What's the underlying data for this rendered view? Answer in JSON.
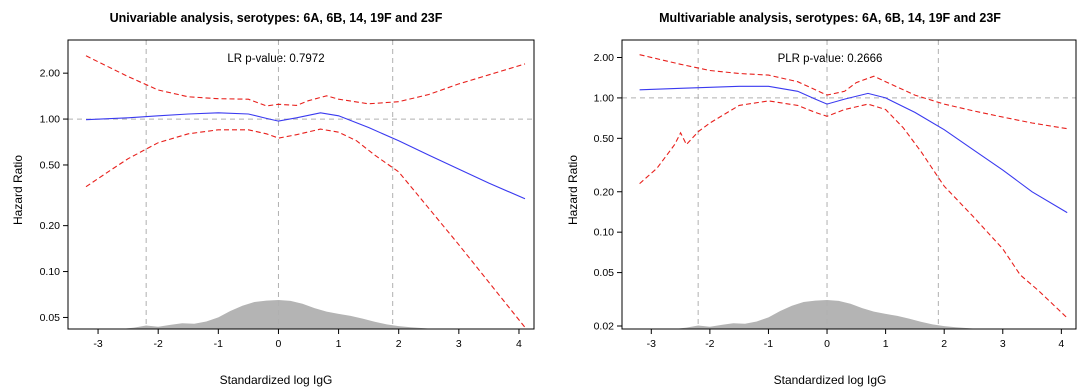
{
  "chart_data": [
    {
      "type": "line",
      "title": "Univariable analysis, serotypes: 6A, 6B, 14, 19F and 23F",
      "xlabel": "Standardized log IgG",
      "ylabel": "Hazard Ratio",
      "annotation": "LR p-value: 0.7972",
      "y_scale": "log",
      "xlim": [
        -3.5,
        4.25
      ],
      "ylim": [
        0.042,
        3.3
      ],
      "x_ticks": [
        -3,
        -2,
        -1,
        0,
        1,
        2,
        3,
        4
      ],
      "y_ticks": [
        0.05,
        0.1,
        0.2,
        0.5,
        1.0,
        2.0
      ],
      "y_tick_labels": [
        "0.05",
        "0.10",
        "0.20",
        "0.50",
        "1.00",
        "2.00"
      ],
      "reference_lines": {
        "vertical": [
          -2.2,
          0,
          1.9
        ],
        "horizontal": [
          1.0
        ]
      },
      "series": [
        {
          "role": "estimate",
          "color": "#3a3af0",
          "style": "solid",
          "x": [
            -3.2,
            -2.5,
            -2.0,
            -1.5,
            -1.0,
            -0.5,
            -0.2,
            0.0,
            0.3,
            0.7,
            1.0,
            1.5,
            2.0,
            2.5,
            3.0,
            3.5,
            4.1
          ],
          "y": [
            0.99,
            1.02,
            1.05,
            1.08,
            1.1,
            1.08,
            1.01,
            0.97,
            1.02,
            1.1,
            1.05,
            0.88,
            0.72,
            0.58,
            0.47,
            0.38,
            0.3
          ]
        },
        {
          "role": "ci-upper",
          "color": "#e8201c",
          "style": "dashed",
          "x": [
            -3.2,
            -2.5,
            -2.0,
            -1.5,
            -1.0,
            -0.5,
            -0.2,
            0.0,
            0.3,
            0.5,
            0.8,
            1.0,
            1.5,
            2.0,
            2.5,
            3.0,
            3.5,
            4.1
          ],
          "y": [
            2.6,
            1.9,
            1.55,
            1.4,
            1.36,
            1.35,
            1.22,
            1.25,
            1.23,
            1.32,
            1.42,
            1.35,
            1.26,
            1.3,
            1.45,
            1.7,
            1.95,
            2.3
          ]
        },
        {
          "role": "ci-lower",
          "color": "#e8201c",
          "style": "dashed",
          "x": [
            -3.2,
            -2.8,
            -2.5,
            -2.0,
            -1.5,
            -1.0,
            -0.5,
            -0.2,
            0.0,
            0.3,
            0.7,
            1.0,
            1.3,
            1.6,
            2.0,
            2.5,
            3.0,
            3.5,
            4.1
          ],
          "y": [
            0.36,
            0.46,
            0.55,
            0.7,
            0.8,
            0.85,
            0.85,
            0.8,
            0.75,
            0.79,
            0.86,
            0.82,
            0.72,
            0.58,
            0.45,
            0.26,
            0.15,
            0.085,
            0.043
          ]
        }
      ],
      "density": {
        "role": "distribution of standardized log IgG",
        "color": "#b4b4b4",
        "x": [
          -2.6,
          -2.4,
          -2.2,
          -2.0,
          -1.8,
          -1.6,
          -1.4,
          -1.2,
          -1.0,
          -0.8,
          -0.6,
          -0.4,
          -0.2,
          0.0,
          0.2,
          0.4,
          0.6,
          0.8,
          1.0,
          1.2,
          1.4,
          1.6,
          1.8,
          2.0,
          2.2,
          2.4,
          2.6
        ],
        "y": [
          0.0,
          0.05,
          0.12,
          0.08,
          0.14,
          0.2,
          0.18,
          0.26,
          0.4,
          0.62,
          0.8,
          0.93,
          0.98,
          1.0,
          0.97,
          0.87,
          0.72,
          0.6,
          0.52,
          0.45,
          0.36,
          0.25,
          0.16,
          0.1,
          0.06,
          0.03,
          0.0
        ]
      }
    },
    {
      "type": "line",
      "title": "Multivariable analysis, serotypes: 6A, 6B, 14, 19F and 23F",
      "xlabel": "Standardized log IgG",
      "ylabel": "Hazard Ratio",
      "annotation": "PLR p-value: 0.2666",
      "y_scale": "log",
      "xlim": [
        -3.5,
        4.25
      ],
      "ylim": [
        0.019,
        2.7
      ],
      "x_ticks": [
        -3,
        -2,
        -1,
        0,
        1,
        2,
        3,
        4
      ],
      "y_ticks": [
        0.02,
        0.05,
        0.1,
        0.2,
        0.5,
        1.0,
        2.0
      ],
      "y_tick_labels": [
        "0.02",
        "0.05",
        "0.10",
        "0.20",
        "0.50",
        "1.00",
        "2.00"
      ],
      "reference_lines": {
        "vertical": [
          -2.2,
          0,
          1.9
        ],
        "horizontal": [
          1.0
        ]
      },
      "series": [
        {
          "role": "estimate",
          "color": "#3a3af0",
          "style": "solid",
          "x": [
            -3.2,
            -2.5,
            -2.0,
            -1.5,
            -1.0,
            -0.5,
            -0.2,
            0.0,
            0.3,
            0.7,
            1.0,
            1.5,
            2.0,
            2.5,
            3.0,
            3.5,
            4.1
          ],
          "y": [
            1.15,
            1.18,
            1.2,
            1.22,
            1.22,
            1.12,
            0.98,
            0.9,
            0.98,
            1.08,
            1.0,
            0.78,
            0.58,
            0.41,
            0.29,
            0.2,
            0.14
          ]
        },
        {
          "role": "ci-upper",
          "color": "#e8201c",
          "style": "dashed",
          "x": [
            -3.2,
            -2.5,
            -2.0,
            -1.5,
            -1.0,
            -0.5,
            -0.2,
            0.0,
            0.3,
            0.5,
            0.8,
            1.0,
            1.5,
            2.0,
            2.5,
            3.0,
            3.5,
            4.1
          ],
          "y": [
            2.1,
            1.78,
            1.6,
            1.52,
            1.48,
            1.32,
            1.15,
            1.05,
            1.12,
            1.3,
            1.45,
            1.32,
            1.05,
            0.9,
            0.8,
            0.72,
            0.65,
            0.59
          ]
        },
        {
          "role": "ci-lower",
          "color": "#e8201c",
          "style": "dashed",
          "x": [
            -3.2,
            -2.9,
            -2.6,
            -2.5,
            -2.4,
            -2.2,
            -2.0,
            -1.5,
            -1.0,
            -0.5,
            -0.2,
            0.0,
            0.3,
            0.7,
            1.0,
            1.3,
            1.6,
            2.0,
            2.5,
            3.0,
            3.3,
            3.6,
            4.1
          ],
          "y": [
            0.23,
            0.3,
            0.45,
            0.55,
            0.45,
            0.56,
            0.65,
            0.88,
            0.95,
            0.88,
            0.78,
            0.73,
            0.82,
            0.9,
            0.82,
            0.6,
            0.4,
            0.22,
            0.13,
            0.075,
            0.048,
            0.037,
            0.023
          ]
        }
      ],
      "density": {
        "role": "distribution of standardized log IgG",
        "color": "#b4b4b4",
        "x": [
          -2.6,
          -2.4,
          -2.2,
          -2.0,
          -1.8,
          -1.6,
          -1.4,
          -1.2,
          -1.0,
          -0.8,
          -0.6,
          -0.4,
          -0.2,
          0.0,
          0.2,
          0.4,
          0.6,
          0.8,
          1.0,
          1.2,
          1.4,
          1.6,
          1.8,
          2.0,
          2.2,
          2.4,
          2.6
        ],
        "y": [
          0.0,
          0.05,
          0.12,
          0.08,
          0.14,
          0.2,
          0.18,
          0.26,
          0.4,
          0.62,
          0.8,
          0.93,
          0.98,
          1.0,
          0.97,
          0.87,
          0.72,
          0.6,
          0.52,
          0.45,
          0.36,
          0.25,
          0.16,
          0.1,
          0.06,
          0.03,
          0.0
        ]
      }
    }
  ]
}
